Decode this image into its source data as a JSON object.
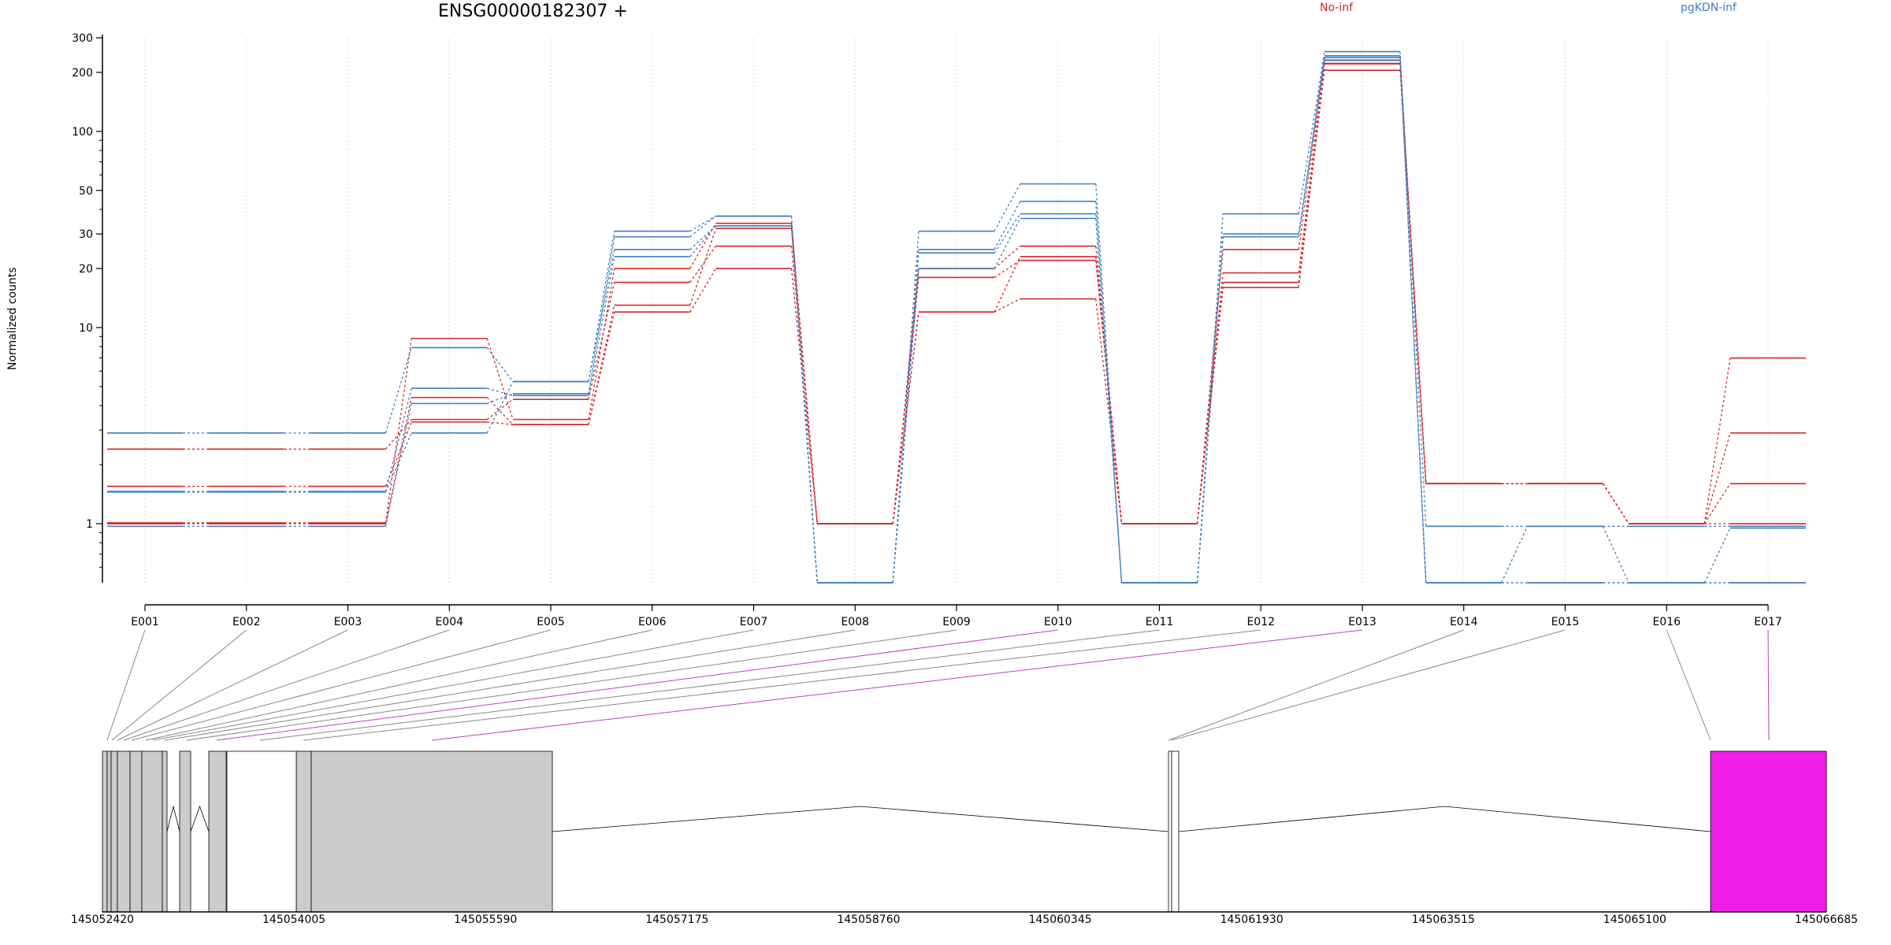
{
  "chart_data": {
    "type": "line",
    "title": "ENSG00000182307 +",
    "ylabel": "Normalized counts",
    "yscale": "log",
    "ylim": [
      0.5,
      300
    ],
    "yticks": [
      1,
      10,
      20,
      30,
      50,
      100,
      200,
      300
    ],
    "legend_placement": "top",
    "grid": "vertical dotted",
    "categories": [
      "E001",
      "E002",
      "E003",
      "E004",
      "E005",
      "E006",
      "E007",
      "E008",
      "E009",
      "E010",
      "E011",
      "E012",
      "E013",
      "E014",
      "E015",
      "E016",
      "E017"
    ],
    "groups": [
      {
        "name": "No-inf",
        "color": "#d62728"
      },
      {
        "name": "pgKDN-inf",
        "color": "#3f7fbf"
      }
    ],
    "series": [
      {
        "group": "No-inf",
        "values": [
          1.01,
          1.01,
          1.01,
          8.8,
          3.4,
          20,
          34,
          1,
          20,
          26,
          1,
          25,
          231,
          1.6,
          1.6,
          1,
          7
        ]
      },
      {
        "group": "No-inf",
        "values": [
          1.55,
          1.55,
          1.55,
          3.3,
          3.2,
          12,
          20,
          1,
          12,
          23,
          1,
          19,
          222,
          1.6,
          1.6,
          1,
          2.9
        ]
      },
      {
        "group": "No-inf",
        "values": [
          2.4,
          2.4,
          2.4,
          3.4,
          4.3,
          17,
          26,
          1,
          18,
          22,
          1,
          17,
          221,
          1.6,
          1.6,
          1,
          1.6
        ]
      },
      {
        "group": "No-inf",
        "values": [
          1.0,
          1.0,
          1.0,
          4.4,
          3.2,
          13,
          32,
          1,
          12,
          14,
          1,
          16,
          205,
          1.6,
          1.6,
          1,
          1.0
        ]
      },
      {
        "group": "pgKDN-inf",
        "values": [
          2.9,
          2.9,
          2.9,
          7.9,
          5.3,
          31,
          37,
          0.5,
          31,
          54,
          0.5,
          38,
          255,
          0.97,
          0.97,
          0.97,
          0.97
        ]
      },
      {
        "group": "pgKDN-inf",
        "values": [
          1.45,
          1.45,
          1.45,
          2.9,
          5.3,
          25,
          33,
          0.5,
          25,
          44,
          0.5,
          30,
          238,
          0.5,
          0.97,
          0.5,
          0.95
        ]
      },
      {
        "group": "pgKDN-inf",
        "values": [
          0.97,
          0.97,
          0.97,
          4.1,
          4.6,
          29,
          37,
          0.5,
          24,
          38,
          0.5,
          29,
          243,
          0.5,
          0.5,
          0.5,
          0.5
        ]
      },
      {
        "group": "pgKDN-inf",
        "values": [
          1.46,
          1.46,
          1.46,
          4.9,
          4.5,
          23,
          33,
          0.5,
          20,
          36,
          0.5,
          29,
          230,
          0.5,
          0.5,
          0.5,
          0.5
        ]
      }
    ],
    "gene_model": {
      "coordinate_ticks": [
        "145052420",
        "145054005",
        "145055590",
        "145057175",
        "145058760",
        "145060345",
        "145061930",
        "145063515",
        "145065100",
        "145066685"
      ],
      "highlight_color": "#f01ee8",
      "highlighted_exons": [
        "E010",
        "E013",
        "E017"
      ]
    }
  }
}
